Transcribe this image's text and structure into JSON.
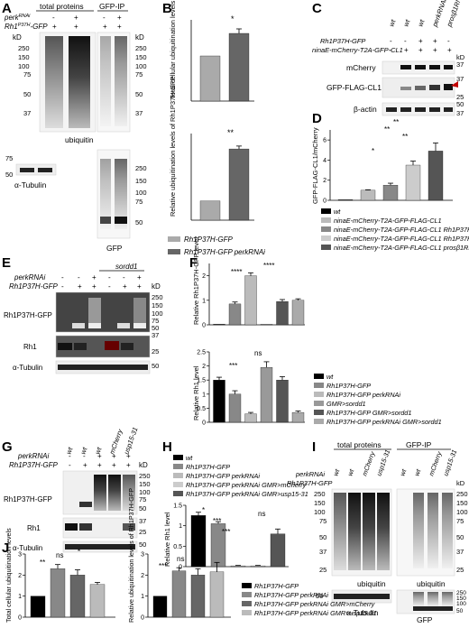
{
  "panels": {
    "A": {
      "letter": "A",
      "header_left": "total proteins",
      "header_right": "GFP-IP",
      "row_perk": "perk",
      "row_perk_sup": "RNAi",
      "row_rh1": "Rh1",
      "row_rh1_sup": "P37H",
      "row_rh1_suffix": "-GFP",
      "perk_signs": [
        "-",
        "+",
        "-",
        "+"
      ],
      "rh1_signs": [
        "+",
        "+",
        "+",
        "+"
      ],
      "kd": "kD",
      "markers_left": [
        "250",
        "150",
        "100",
        "75",
        "50",
        "37"
      ],
      "markers_right": [
        "250",
        "150",
        "100",
        "75",
        "50",
        "37"
      ],
      "blot_ubiquitin": "ubiquitin",
      "blot_tubulin": "α-Tubulin",
      "tubulin_markers": [
        "75",
        "50"
      ],
      "blot_gfp": "GFP",
      "gfp_markers": [
        "250",
        "150",
        "100",
        "75",
        "50"
      ]
    },
    "B": {
      "letter": "B",
      "ylabel_top": "Total cellular ubiquitination levels",
      "ylabel_bottom": "Relative ubiquitination levels of Rh1P37H-GFP",
      "legend": [
        "Rh1P37H-GFP",
        "Rh1P37H-GFP perkRNAi"
      ],
      "sig_top": "*",
      "sig_bottom": "**"
    },
    "C": {
      "letter": "C",
      "genotypes": [
        "wt",
        "wt",
        "wt",
        "perkRNAi",
        "prosβ1RNAi"
      ],
      "row_rh1": "Rh1P37H-GFP",
      "row_nina": "ninaE-mCherry-T2A-GFP-CL1",
      "rh1_signs": [
        "-",
        "-",
        "+",
        "+",
        "-"
      ],
      "nina_signs": [
        "-",
        "+",
        "+",
        "+",
        "+"
      ],
      "blots": [
        "mCherry",
        "GFP-FLAG-CL1",
        "β-actin"
      ],
      "kd": "kD",
      "markers": [
        "37",
        "37",
        "25",
        "50",
        "37"
      ]
    },
    "D": {
      "letter": "D",
      "ylabel": "GFP-FLAG-CL1/mCherry",
      "sig": [
        "**",
        "**",
        "**",
        "*"
      ],
      "legend": [
        "wt",
        "ninaE-mCherry-T2A-GFP-FLAG-CL1",
        "ninaE-mCherry-T2A-GFP-FLAG-CL1 Rh1P37H-GFP",
        "ninaE-mCherry-T2A-GFP-FLAG-CL1 Rh1P37H-GFP perkRNAi",
        "ninaE-mCherry-T2A-GFP-FLAG-CL1 prosβ1RNAi"
      ]
    },
    "E": {
      "letter": "E",
      "top_label": "sordd1",
      "row_perk": "perkRNAi",
      "row_rh1": "Rh1P37H-GFP",
      "perk_signs": [
        "-",
        "-",
        "+",
        "-",
        "-",
        "+"
      ],
      "rh1_signs": [
        "-",
        "+",
        "+",
        "-",
        "+",
        "+"
      ],
      "kd": "kD",
      "blots": [
        "Rh1P37H-GFP",
        "Rh1",
        "α-Tubulin"
      ],
      "markers": [
        "250",
        "150",
        "100",
        "75",
        "50",
        "37",
        "25",
        "50"
      ]
    },
    "F": {
      "letter": "F",
      "ylabel_top": "Relative Rh1P37H-GFP level",
      "ylabel_bottom": "Relative Rh1 level",
      "sig": [
        "****",
        "****",
        "***",
        "ns"
      ],
      "legend": [
        "wt",
        "Rh1P37H-GFP",
        "Rh1P37H-GFP perkRNAi",
        "GMR>sordd1",
        "Rh1P37H-GFP GMR>sordd1",
        "Rh1P37H-GFP perkRNAi GMR>sordd1"
      ]
    },
    "G": {
      "letter": "G",
      "genotypes": [
        "wt",
        "wt",
        "wt",
        "mCherry",
        "usp15-31"
      ],
      "row_perk": "perkRNAi",
      "row_rh1": "Rh1P37H-GFP",
      "perk_signs": [
        "-",
        "-",
        "+",
        "+",
        "+"
      ],
      "rh1_signs": [
        "-",
        "+",
        "+",
        "+",
        "+"
      ],
      "kd": "kD",
      "blots": [
        "Rh1P37H-GFP",
        "Rh1",
        "α-Tubulin"
      ],
      "markers": [
        "250",
        "150",
        "100",
        "75",
        "50",
        "37",
        "25",
        "50"
      ]
    },
    "H": {
      "letter": "H",
      "ylabel": "Relative Rh1 level",
      "sig": [
        "*",
        "***",
        "***",
        "ns"
      ],
      "legend": [
        "wt",
        "Rh1P37H-GFP",
        "Rh1P37H-GFP perkRNAi",
        "Rh1P37H-GFP perkRNAi GMR>mCherry",
        "Rh1P37H-GFP perkRNAi GMR>usp15-31"
      ]
    },
    "I": {
      "letter": "I",
      "header_left": "total proteins",
      "header_right": "GFP-IP",
      "genotypes": [
        "wt",
        "wt",
        "mCherry",
        "usp15-31",
        "wt",
        "wt",
        "mCherry",
        "usp15-31"
      ],
      "row_perk": "perkRNAi",
      "row_rh1": "Rh1P37H-GFP",
      "kd": "kD",
      "blot_ubiquitin": "ubiquitin",
      "markers_left": [
        "250",
        "150",
        "100",
        "75",
        "50",
        "37",
        "25"
      ],
      "markers_right": [
        "250",
        "150",
        "100",
        "75",
        "50",
        "37",
        "25"
      ],
      "blot_tubulin": "α-Tubulin",
      "blot_gfp": "GFP",
      "tubulin_markers": [
        "50"
      ],
      "gfp_markers": [
        "250",
        "150",
        "100",
        "50"
      ]
    },
    "J": {
      "letter": "J",
      "ylabel_left": "Total cellular ubiquitination levels",
      "ylabel_right": "Relative ubiquitination levels of Rh1P37H-GFP",
      "sig_left": [
        "**",
        "ns",
        "*"
      ],
      "sig_right": [
        "***",
        "ns",
        "ns"
      ],
      "legend": [
        "Rh1P37H-GFP",
        "Rh1P37H-GFP perkRNAi",
        "Rh1P37H-GFP perkRNAi GMR>mCherry",
        "Rh1P37H-GFP perkRNAi GMR>usp15-31"
      ]
    }
  },
  "chart_data": [
    {
      "type": "bar",
      "panel": "B-top",
      "categories": [
        "Rh1P37H-GFP",
        "Rh1P37H-GFP perkRNAi"
      ],
      "values": [
        1.0,
        1.5
      ],
      "errors": [
        0,
        0.1
      ],
      "ylim": [
        0,
        1.8
      ],
      "ylabel": "Total cellular ubiquitination levels",
      "colors": [
        "#aaaaaa",
        "#666666"
      ]
    },
    {
      "type": "bar",
      "panel": "B-bottom",
      "categories": [
        "Rh1P37H-GFP",
        "Rh1P37H-GFP perkRNAi"
      ],
      "values": [
        1.0,
        3.7
      ],
      "errors": [
        0,
        0.15
      ],
      "ylim": [
        0,
        4.5
      ],
      "ylabel": "Relative ubiquitination levels of Rh1P37H-GFP",
      "colors": [
        "#aaaaaa",
        "#666666"
      ]
    },
    {
      "type": "bar",
      "panel": "D",
      "categories": [
        "wt",
        "CL1",
        "CL1 Rh1P37H-GFP",
        "CL1 Rh1P37H-GFP perkRNAi",
        "CL1 prosβ1RNAi"
      ],
      "values": [
        0,
        1.0,
        1.5,
        3.5,
        4.9
      ],
      "errors": [
        0,
        0.05,
        0.2,
        0.4,
        0.8
      ],
      "ylim": [
        0,
        7
      ],
      "yticks": [
        0,
        2,
        4,
        6
      ],
      "ylabel": "GFP-FLAG-CL1/mCherry",
      "colors": [
        "#000000",
        "#bbbbbb",
        "#888888",
        "#cccccc",
        "#555555"
      ]
    },
    {
      "type": "bar",
      "panel": "F-top",
      "categories": [
        "wt",
        "Rh1P37H-GFP",
        "Rh1P37H-GFP perkRNAi",
        "GMR>sordd1",
        "Rh1P37H-GFP GMR>sordd1",
        "Rh1P37H-GFP perkRNAi GMR>sordd1"
      ],
      "values": [
        0,
        0.85,
        2.0,
        0,
        0.95,
        1.0
      ],
      "errors": [
        0,
        0.08,
        0.12,
        0,
        0.08,
        0.06
      ],
      "ylim": [
        0,
        2.5
      ],
      "yticks": [
        0,
        1,
        2
      ],
      "ylabel": "Relative Rh1P37H-GFP level",
      "colors": [
        "#000000",
        "#888888",
        "#bbbbbb",
        "#999999",
        "#555555",
        "#aaaaaa"
      ]
    },
    {
      "type": "bar",
      "panel": "F-bottom",
      "categories": [
        "wt",
        "Rh1P37H-GFP",
        "Rh1P37H-GFP perkRNAi",
        "GMR>sordd1",
        "Rh1P37H-GFP GMR>sordd1",
        "Rh1P37H-GFP perkRNAi GMR>sordd1"
      ],
      "values": [
        1.5,
        1.0,
        0.3,
        1.95,
        1.5,
        0.35
      ],
      "errors": [
        0.1,
        0.12,
        0.05,
        0.2,
        0.12,
        0.05
      ],
      "ylim": [
        0,
        2.5
      ],
      "yticks": [
        0,
        0.5,
        1,
        1.5,
        2,
        2.5
      ],
      "ylabel": "Relative Rh1 level",
      "colors": [
        "#000000",
        "#888888",
        "#bbbbbb",
        "#999999",
        "#555555",
        "#aaaaaa"
      ]
    },
    {
      "type": "bar",
      "panel": "H",
      "categories": [
        "wt",
        "Rh1P37H-GFP",
        "Rh1P37H-GFP perkRNAi",
        "Rh1P37H-GFP perkRNAi GMR>mCherry",
        "Rh1P37H-GFP perkRNAi GMR>usp15-31"
      ],
      "values": [
        1.25,
        1.05,
        0.02,
        0.02,
        0.8
      ],
      "errors": [
        0.08,
        0.05,
        0.01,
        0.01,
        0.12
      ],
      "ylim": [
        0,
        1.5
      ],
      "yticks": [
        0,
        0.5,
        1,
        1.5
      ],
      "ylabel": "Relative Rh1 level",
      "colors": [
        "#000000",
        "#888888",
        "#bbbbbb",
        "#cccccc",
        "#555555"
      ]
    },
    {
      "type": "bar",
      "panel": "J-left",
      "categories": [
        "Rh1P37H-GFP",
        "Rh1P37H-GFP perkRNAi",
        "Rh1P37H-GFP perkRNAi GMR>mCherry",
        "Rh1P37H-GFP perkRNAi GMR>usp15-31"
      ],
      "values": [
        1.0,
        2.3,
        2.0,
        1.55
      ],
      "errors": [
        0,
        0.2,
        0.25,
        0.1
      ],
      "ylim": [
        0,
        3
      ],
      "yticks": [
        0,
        1,
        2,
        3
      ],
      "ylabel": "Total cellular ubiquitination levels",
      "colors": [
        "#000000",
        "#888888",
        "#666666",
        "#bbbbbb"
      ]
    },
    {
      "type": "bar",
      "panel": "J-right",
      "categories": [
        "Rh1P37H-GFP",
        "Rh1P37H-GFP perkRNAi",
        "Rh1P37H-GFP perkRNAi GMR>mCherry",
        "Rh1P37H-GFP perkRNAi GMR>usp15-31"
      ],
      "values": [
        1.0,
        2.2,
        2.0,
        2.15
      ],
      "errors": [
        0,
        0.15,
        0.3,
        0.45
      ],
      "ylim": [
        0,
        3
      ],
      "yticks": [
        0,
        1,
        2,
        3
      ],
      "ylabel": "Relative ubiquitination levels of Rh1P37H-GFP",
      "colors": [
        "#000000",
        "#888888",
        "#666666",
        "#bbbbbb"
      ]
    }
  ]
}
